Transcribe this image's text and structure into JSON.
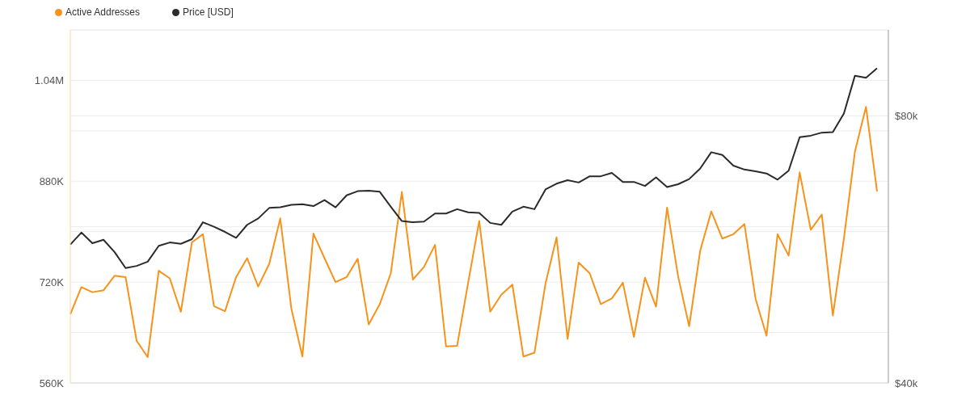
{
  "chart_data": {
    "type": "line",
    "categories": [
      null,
      null,
      null,
      null,
      null,
      null,
      null,
      null,
      null,
      null,
      null,
      null,
      null,
      null,
      null,
      null,
      null,
      null,
      null,
      null,
      null,
      null,
      null,
      null,
      null,
      null,
      null,
      null,
      null,
      null,
      null,
      null,
      null,
      null,
      null,
      null,
      null,
      null,
      null,
      null,
      null,
      null,
      null,
      null,
      null,
      null,
      null,
      null,
      null,
      null,
      null,
      null,
      null,
      null,
      null,
      null,
      null,
      null,
      null,
      null,
      null,
      null,
      null,
      null,
      null,
      null,
      null,
      null,
      null,
      null,
      null,
      null,
      null,
      null
    ],
    "series": [
      {
        "name": "Active Addresses",
        "color": "#f7931a",
        "values": [
          669000,
          712000,
          704000,
          707000,
          730000,
          728000,
          627000,
          601000,
          738000,
          726000,
          673000,
          783000,
          796000,
          682000,
          674000,
          728000,
          758000,
          713000,
          749000,
          821000,
          678000,
          602000,
          797000,
          758000,
          720000,
          728000,
          757000,
          653000,
          685000,
          734000,
          863000,
          724000,
          744000,
          779000,
          618000,
          619000,
          719000,
          817000,
          673000,
          700000,
          716000,
          602000,
          608000,
          718000,
          791000,
          630000,
          751000,
          734000,
          685000,
          694000,
          719000,
          633000,
          727000,
          681000,
          838000,
          729000,
          650000,
          770000,
          832000,
          789000,
          796000,
          812000,
          694000,
          635000,
          796000,
          762000,
          894000,
          803000,
          827000,
          667000,
          789000,
          927000,
          998000,
          864000
        ]
      },
      {
        "name": "Price [USD]",
        "color": "#2b2b2b",
        "axis": "y2",
        "values": [
          57300,
          59100,
          57500,
          58000,
          56200,
          53900,
          54200,
          54800,
          57100,
          57600,
          57400,
          58100,
          60700,
          60000,
          59200,
          58300,
          60300,
          61300,
          63000,
          63100,
          63500,
          63600,
          63300,
          64300,
          63100,
          65100,
          65800,
          65900,
          65700,
          63200,
          60900,
          60700,
          60800,
          62100,
          62100,
          62800,
          62300,
          62200,
          60600,
          60300,
          62400,
          63200,
          62800,
          66100,
          67100,
          67700,
          67300,
          68400,
          68400,
          69000,
          67400,
          67400,
          66700,
          68200,
          66500,
          67000,
          67900,
          69800,
          72800,
          72300,
          70300,
          69600,
          69300,
          68900,
          67800,
          69400,
          75700,
          76000,
          76600,
          76700,
          80500,
          88800,
          88300,
          90500
        ]
      }
    ],
    "ylim": [
      560000,
      1120000
    ],
    "yticks": [
      {
        "value": 560000,
        "label": "560K"
      },
      {
        "value": 640000,
        "label": null
      },
      {
        "value": 720000,
        "label": "720K"
      },
      {
        "value": 800000,
        "label": null
      },
      {
        "value": 880000,
        "label": "880K"
      },
      {
        "value": 960000,
        "label": null
      },
      {
        "value": 1040000,
        "label": "1.04M"
      },
      {
        "value": 1120000,
        "label": null
      }
    ],
    "y2lim": [
      40000,
      100000
    ],
    "y2ticks": [
      {
        "value": 40000,
        "label": "$40k"
      },
      {
        "value": 60000,
        "label": null
      },
      {
        "value": 80000,
        "label": "$80k"
      }
    ],
    "log": "y2",
    "grid": "y",
    "legend": "top left",
    "marker": "none",
    "line_style": "solid"
  }
}
